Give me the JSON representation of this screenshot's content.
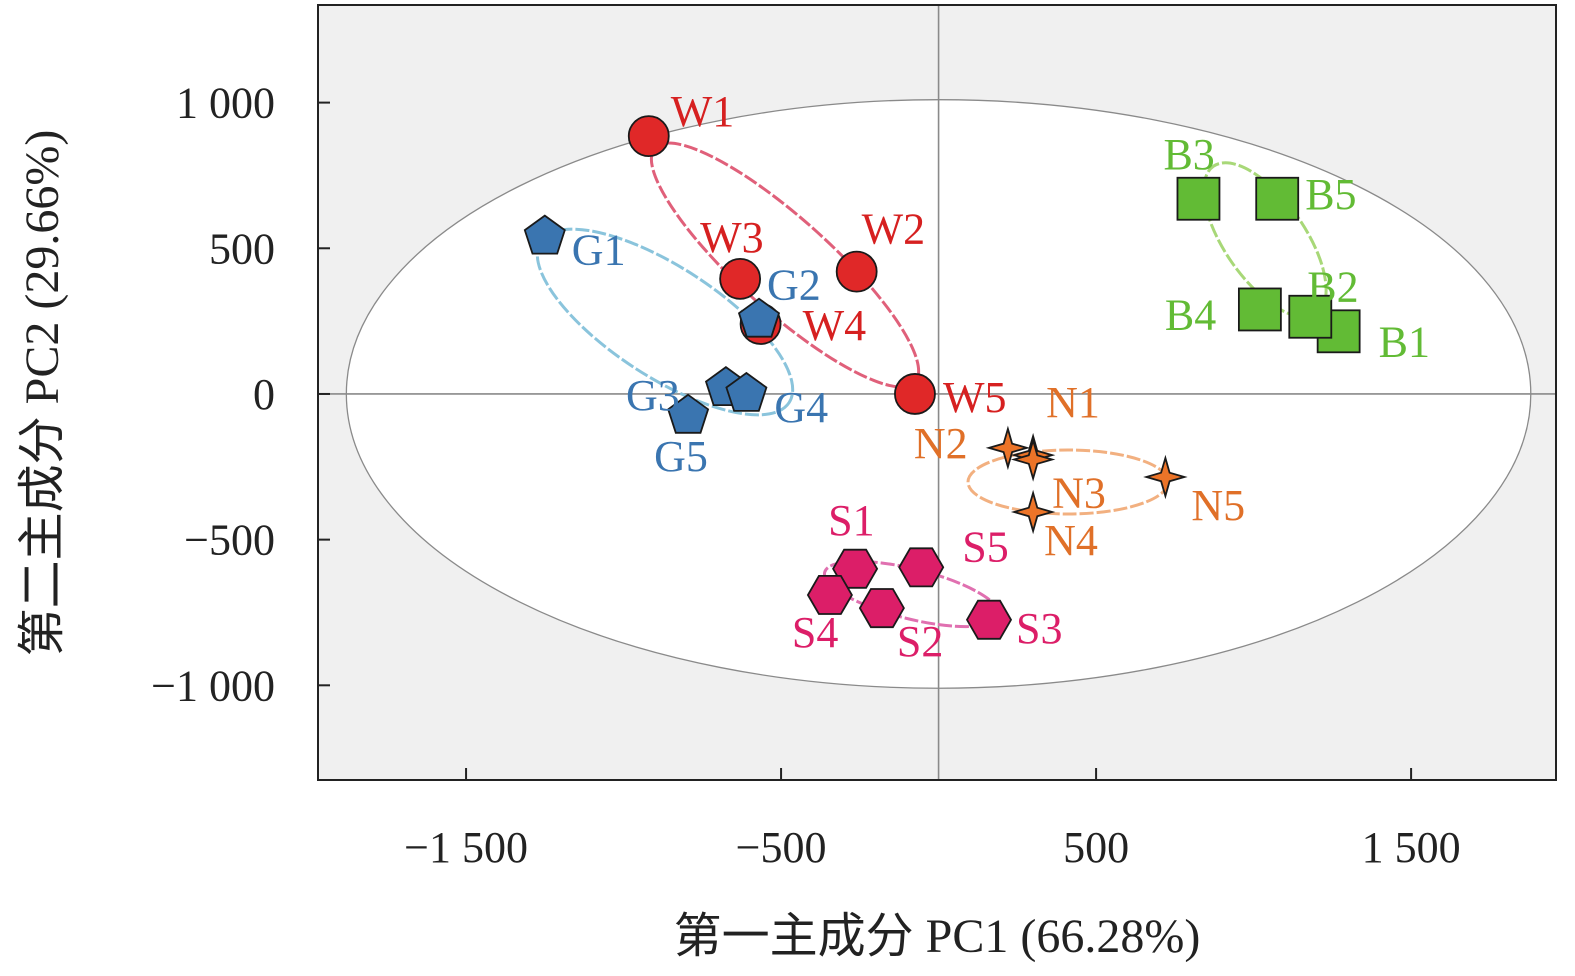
{
  "chart_data": {
    "type": "scatter",
    "title": "",
    "xlabel": "第一主成分 PC1 (66.28%)",
    "ylabel": "第二主成分 PC2 (29.66%)",
    "xlim": [
      -1970,
      1960
    ],
    "ylim": [
      -1325,
      1335
    ],
    "xticks": [
      {
        "value": -1500,
        "label": "−1 500"
      },
      {
        "value": -500,
        "label": "−500"
      },
      {
        "value": 500,
        "label": "500"
      },
      {
        "value": 1500,
        "label": "1 500"
      }
    ],
    "yticks": [
      {
        "value": 1000,
        "label": "1 000"
      },
      {
        "value": 500,
        "label": "500"
      },
      {
        "value": 0,
        "label": "0"
      },
      {
        "value": -500,
        "label": "−500"
      },
      {
        "value": -1000,
        "label": "−1 000"
      }
    ],
    "confidence_ellipse": {
      "rx": 1880,
      "ry": 1010
    },
    "series": [
      {
        "group": "W",
        "marker": "circle",
        "color": "#e02828",
        "label_color": "#d62020",
        "ellipse_color": "#e0607a",
        "points": [
          {
            "name": "W1",
            "x": -920,
            "y": 885
          },
          {
            "name": "W2",
            "x": -260,
            "y": 420
          },
          {
            "name": "W3",
            "x": -630,
            "y": 395
          },
          {
            "name": "W4",
            "x": -565,
            "y": 240
          },
          {
            "name": "W5",
            "x": -75,
            "y": 0
          }
        ]
      },
      {
        "group": "G",
        "marker": "pentagon",
        "color": "#3a75b0",
        "label_color": "#3a75b0",
        "ellipse_color": "#8ac4dc",
        "points": [
          {
            "name": "G1",
            "x": -1250,
            "y": 540
          },
          {
            "name": "G2",
            "x": -570,
            "y": 255
          },
          {
            "name": "G3",
            "x": -675,
            "y": 20
          },
          {
            "name": "G4",
            "x": -610,
            "y": 0
          },
          {
            "name": "G5",
            "x": -795,
            "y": -75
          }
        ]
      },
      {
        "group": "B",
        "marker": "square",
        "color": "#62bb35",
        "label_color": "#62bb35",
        "ellipse_color": "#a8d878",
        "points": [
          {
            "name": "B1",
            "x": 1270,
            "y": 215
          },
          {
            "name": "B2",
            "x": 1180,
            "y": 265
          },
          {
            "name": "B3",
            "x": 825,
            "y": 670
          },
          {
            "name": "B4",
            "x": 1020,
            "y": 290
          },
          {
            "name": "B5",
            "x": 1075,
            "y": 670
          }
        ]
      },
      {
        "group": "N",
        "marker": "star4",
        "color": "#ec7428",
        "label_color": "#e07028",
        "ellipse_color": "#f2b080",
        "points": [
          {
            "name": "N1",
            "x": 300,
            "y": -210
          },
          {
            "name": "N2",
            "x": 220,
            "y": -185
          },
          {
            "name": "N3",
            "x": 300,
            "y": -225
          },
          {
            "name": "N4",
            "x": 300,
            "y": -405
          },
          {
            "name": "N5",
            "x": 720,
            "y": -285
          }
        ]
      },
      {
        "group": "S",
        "marker": "hexagon",
        "color": "#dc1e68",
        "label_color": "#dc1e68",
        "ellipse_color": "#e070b0",
        "points": [
          {
            "name": "S1",
            "x": -265,
            "y": -600
          },
          {
            "name": "S2",
            "x": -180,
            "y": -735
          },
          {
            "name": "S3",
            "x": 160,
            "y": -775
          },
          {
            "name": "S4",
            "x": -345,
            "y": -690
          },
          {
            "name": "S5",
            "x": -55,
            "y": -595
          }
        ]
      }
    ]
  }
}
